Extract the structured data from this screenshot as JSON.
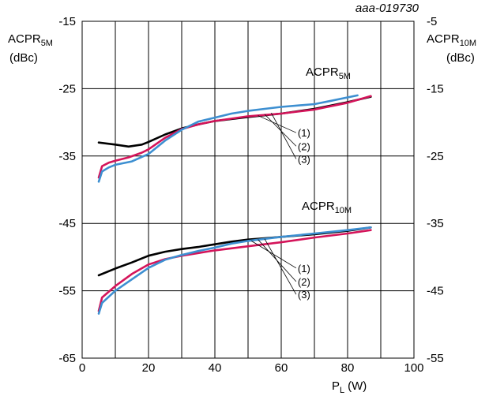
{
  "chart_data": {
    "type": "line",
    "reference": "aaa-019730",
    "xlabel": "P",
    "xlabel_sub": "L",
    "xlabel_unit": "(W)",
    "ylabel_left": {
      "main": "ACPR",
      "sub": "5M",
      "unit": "(dBc)"
    },
    "ylabel_right": {
      "main": "ACPR",
      "sub": "10M",
      "unit": "(dBc)"
    },
    "xlim": [
      0,
      100
    ],
    "ylim_left": [
      -65,
      -15
    ],
    "ylim_right": [
      -55,
      -5
    ],
    "x_ticks": [
      "0",
      "20",
      "40",
      "60",
      "80",
      "100"
    ],
    "y_ticks_left": [
      "-15",
      "-25",
      "-35",
      "-45",
      "-55",
      "-65"
    ],
    "y_ticks_right": [
      "-5",
      "-15",
      "-25",
      "-35",
      "-45",
      "-55"
    ],
    "grid": true,
    "group_labels": [
      {
        "main": "ACPR",
        "sub": "5M"
      },
      {
        "main": "ACPR",
        "sub": "10M"
      }
    ],
    "callouts": [
      {
        "label": "(1)",
        "color": "#000000"
      },
      {
        "label": "(2)",
        "color": "#d4145a"
      },
      {
        "label": "(3)",
        "color": "#3d8fd1"
      }
    ],
    "series": [
      {
        "group": "ACPR5M",
        "curve": "(1)",
        "color": "#000000",
        "x": [
          5,
          10,
          14,
          18,
          20,
          25,
          30,
          35,
          40,
          50,
          60,
          70,
          80,
          87
        ],
        "y": [
          -33,
          -33.3,
          -33.6,
          -33.3,
          -32.9,
          -31.8,
          -30.9,
          -30.3,
          -29.8,
          -29.2,
          -28.7,
          -28.0,
          -27.0,
          -26.2
        ]
      },
      {
        "group": "ACPR5M",
        "curve": "(2)",
        "color": "#d4145a",
        "x": [
          5,
          6,
          8,
          10,
          14,
          18,
          20,
          25,
          30,
          35,
          40,
          50,
          60,
          70,
          80,
          87
        ],
        "y": [
          -38.2,
          -36.5,
          -36.0,
          -35.7,
          -35.2,
          -34.5,
          -34.0,
          -32.3,
          -31.0,
          -30.3,
          -29.8,
          -29.1,
          -28.7,
          -28.1,
          -27.1,
          -26.1
        ]
      },
      {
        "group": "ACPR5M",
        "curve": "(3)",
        "color": "#3d8fd1",
        "x": [
          5,
          6,
          8,
          10,
          15,
          20,
          25,
          30,
          35,
          40,
          45,
          50,
          55,
          60,
          70,
          75,
          83
        ],
        "y": [
          -38.8,
          -37.3,
          -36.7,
          -36.3,
          -35.8,
          -34.7,
          -32.7,
          -31.1,
          -29.9,
          -29.3,
          -28.7,
          -28.3,
          -28.0,
          -27.7,
          -27.3,
          -26.8,
          -26.0
        ]
      },
      {
        "group": "ACPR10M",
        "curve": "(1)",
        "color": "#000000",
        "x": [
          5,
          10,
          15,
          20,
          25,
          30,
          35,
          40,
          45,
          50,
          55,
          60,
          70,
          80,
          87
        ],
        "y": [
          -52.7,
          -51.7,
          -50.8,
          -49.8,
          -49.2,
          -48.8,
          -48.5,
          -48.1,
          -47.7,
          -47.4,
          -47.2,
          -47.0,
          -46.6,
          -46.1,
          -45.6
        ]
      },
      {
        "group": "ACPR10M",
        "curve": "(2)",
        "color": "#d4145a",
        "x": [
          5,
          6,
          10,
          15,
          20,
          25,
          30,
          35,
          40,
          50,
          60,
          70,
          80,
          87
        ],
        "y": [
          -58.0,
          -56.0,
          -54.3,
          -52.5,
          -51.1,
          -50.3,
          -49.8,
          -49.4,
          -49.0,
          -48.4,
          -47.8,
          -47.1,
          -46.5,
          -46.0
        ]
      },
      {
        "group": "ACPR10M",
        "curve": "(3)",
        "color": "#3d8fd1",
        "x": [
          5,
          6,
          10,
          15,
          20,
          25,
          30,
          35,
          40,
          45,
          50,
          55,
          60,
          70,
          80,
          87
        ],
        "y": [
          -58.4,
          -56.8,
          -55.0,
          -53.3,
          -51.6,
          -50.4,
          -49.7,
          -49.1,
          -48.6,
          -48.0,
          -47.6,
          -47.3,
          -47.0,
          -46.5,
          -46.0,
          -45.6
        ]
      }
    ]
  }
}
